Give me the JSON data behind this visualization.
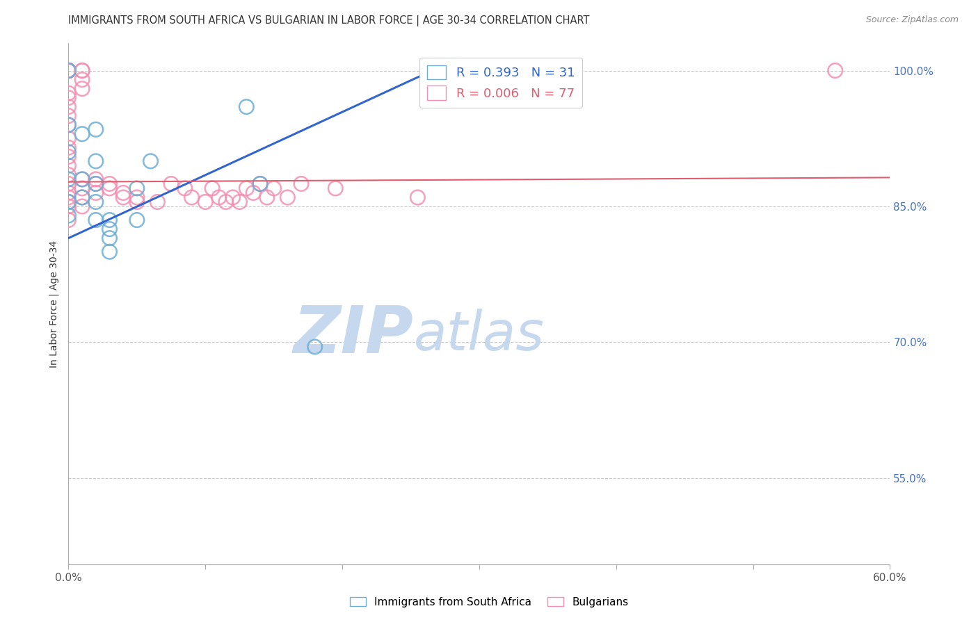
{
  "title": "IMMIGRANTS FROM SOUTH AFRICA VS BULGARIAN IN LABOR FORCE | AGE 30-34 CORRELATION CHART",
  "source": "Source: ZipAtlas.com",
  "ylabel": "In Labor Force | Age 30-34",
  "xlim": [
    0.0,
    0.6
  ],
  "ylim": [
    0.455,
    1.03
  ],
  "legend_blue_r": "R = 0.393",
  "legend_blue_n": "N = 31",
  "legend_pink_r": "R = 0.006",
  "legend_pink_n": "N = 77",
  "legend_label_blue": "Immigrants from South Africa",
  "legend_label_pink": "Bulgarians",
  "blue_color": "#93c5e8",
  "pink_color": "#f4a7bc",
  "blue_edge_color": "#6baed6",
  "pink_edge_color": "#f48fb1",
  "blue_line_color": "#3366cc",
  "pink_line_color": "#e05c6e",
  "grid_color": "#c8c8c8",
  "background_color": "#ffffff",
  "ytick_values": [
    0.55,
    0.7,
    0.85,
    1.0
  ],
  "ytick_labels": [
    "55.0%",
    "70.0%",
    "85.0%",
    "100.0%"
  ],
  "xtick_left": "0.0%",
  "xtick_right": "60.0%",
  "blue_x": [
    0.0,
    0.0,
    0.0,
    0.0,
    0.0,
    0.0,
    0.01,
    0.01,
    0.01,
    0.02,
    0.02,
    0.02,
    0.02,
    0.02,
    0.03,
    0.03,
    0.03,
    0.03,
    0.05,
    0.05,
    0.06,
    0.13,
    0.14,
    0.18,
    0.27,
    0.27,
    0.27,
    0.27
  ],
  "blue_y": [
    1.0,
    0.94,
    0.91,
    0.88,
    0.855,
    0.84,
    0.93,
    0.88,
    0.86,
    0.935,
    0.9,
    0.875,
    0.855,
    0.835,
    0.835,
    0.825,
    0.815,
    0.8,
    0.87,
    0.835,
    0.9,
    0.96,
    0.875,
    0.695,
    1.0,
    1.0,
    1.0,
    1.0
  ],
  "pink_x": [
    0.0,
    0.0,
    0.0,
    0.0,
    0.0,
    0.0,
    0.0,
    0.0,
    0.0,
    0.0,
    0.0,
    0.0,
    0.0,
    0.0,
    0.0,
    0.0,
    0.0,
    0.0,
    0.0,
    0.0,
    0.0,
    0.0,
    0.0,
    0.0,
    0.01,
    0.01,
    0.01,
    0.01,
    0.01,
    0.01,
    0.01,
    0.01,
    0.02,
    0.02,
    0.02,
    0.03,
    0.03,
    0.04,
    0.04,
    0.05,
    0.05,
    0.065,
    0.075,
    0.085,
    0.09,
    0.1,
    0.105,
    0.11,
    0.115,
    0.12,
    0.125,
    0.13,
    0.135,
    0.14,
    0.145,
    0.15,
    0.16,
    0.17,
    0.195,
    0.255,
    0.56
  ],
  "pink_y": [
    1.0,
    1.0,
    1.0,
    1.0,
    1.0,
    1.0,
    1.0,
    1.0,
    0.975,
    0.97,
    0.96,
    0.95,
    0.94,
    0.925,
    0.915,
    0.905,
    0.895,
    0.885,
    0.875,
    0.865,
    0.86,
    0.855,
    0.85,
    0.835,
    1.0,
    1.0,
    0.99,
    0.98,
    0.88,
    0.87,
    0.86,
    0.85,
    0.88,
    0.875,
    0.865,
    0.875,
    0.87,
    0.865,
    0.86,
    0.86,
    0.855,
    0.855,
    0.875,
    0.87,
    0.86,
    0.855,
    0.87,
    0.86,
    0.855,
    0.86,
    0.855,
    0.87,
    0.865,
    0.875,
    0.86,
    0.87,
    0.86,
    0.875,
    0.87,
    0.86,
    1.0
  ],
  "blue_trend_x": [
    0.0,
    0.28
  ],
  "blue_trend_y": [
    0.815,
    1.01
  ],
  "pink_trend_x": [
    -0.01,
    0.61
  ],
  "pink_trend_y": [
    0.877,
    0.882
  ],
  "watermark_zip_color": "#c5d8ee",
  "watermark_atlas_color": "#c5d8ee"
}
